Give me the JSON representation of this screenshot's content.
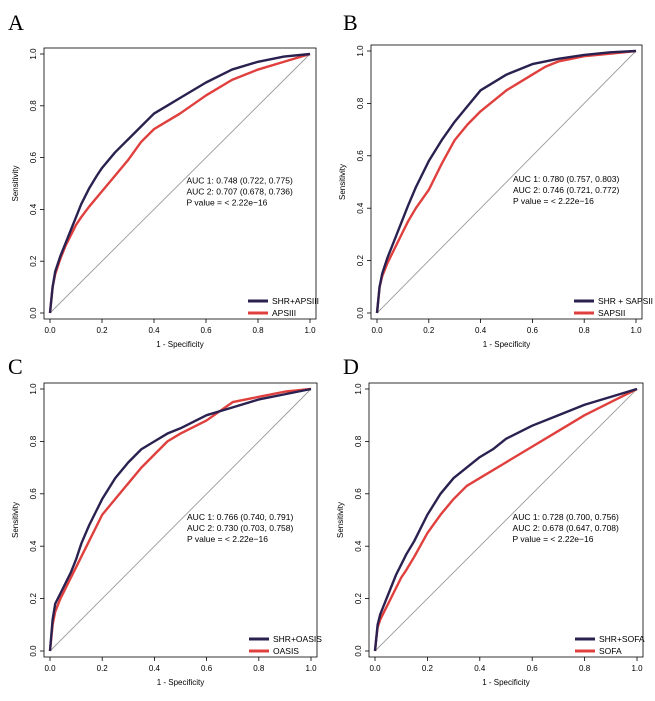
{
  "colors": {
    "series1": "#2b2150",
    "series2": "#e0403d",
    "diagonal": "#9a9a9a",
    "frame": "#000000"
  },
  "chart_data": [
    {
      "panel": "A",
      "type": "line",
      "xlabel": "1 - Specificity",
      "ylabel": "Sensitivity",
      "xlim": [
        0,
        1
      ],
      "ylim": [
        0,
        1
      ],
      "xticks": [
        "0.0",
        "0.2",
        "0.4",
        "0.6",
        "0.8",
        "1.0"
      ],
      "yticks": [
        "0.0",
        "0.2",
        "0.4",
        "0.6",
        "0.8",
        "1.0"
      ],
      "annotations": [
        "AUC 1: 0.748 (0.722, 0.775)",
        "AUC 2: 0.707 (0.678, 0.736)",
        "P value = < 2.22e−16"
      ],
      "legend_position": "bottom-right",
      "series": [
        {
          "name": "SHR+APSIII",
          "x": [
            0,
            0.005,
            0.01,
            0.02,
            0.04,
            0.06,
            0.08,
            0.1,
            0.12,
            0.15,
            0.18,
            0.2,
            0.25,
            0.3,
            0.35,
            0.4,
            0.45,
            0.5,
            0.6,
            0.7,
            0.8,
            0.9,
            1.0
          ],
          "y": [
            0,
            0.05,
            0.1,
            0.16,
            0.22,
            0.27,
            0.32,
            0.37,
            0.42,
            0.48,
            0.53,
            0.56,
            0.62,
            0.67,
            0.72,
            0.77,
            0.8,
            0.83,
            0.89,
            0.94,
            0.97,
            0.99,
            1.0
          ]
        },
        {
          "name": "APSIII",
          "x": [
            0,
            0.005,
            0.01,
            0.02,
            0.04,
            0.06,
            0.08,
            0.1,
            0.12,
            0.15,
            0.2,
            0.25,
            0.3,
            0.35,
            0.4,
            0.45,
            0.5,
            0.6,
            0.7,
            0.8,
            0.9,
            1.0
          ],
          "y": [
            0,
            0.05,
            0.1,
            0.15,
            0.21,
            0.26,
            0.3,
            0.34,
            0.37,
            0.41,
            0.47,
            0.53,
            0.59,
            0.66,
            0.71,
            0.74,
            0.77,
            0.84,
            0.9,
            0.94,
            0.97,
            1.0
          ]
        }
      ]
    },
    {
      "panel": "B",
      "type": "line",
      "xlabel": "1 - Specificity",
      "ylabel": "Sensitivity",
      "xlim": [
        0,
        1
      ],
      "ylim": [
        0,
        1
      ],
      "xticks": [
        "0.0",
        "0.2",
        "0.4",
        "0.6",
        "0.8",
        "1.0"
      ],
      "yticks": [
        "0.0",
        "0.2",
        "0.4",
        "0.6",
        "0.8",
        "1.0"
      ],
      "annotations": [
        "AUC 1: 0.780 (0.757, 0.803)",
        "AUC 2: 0.746 (0.721, 0.772)",
        "P value = < 2.22e−16"
      ],
      "legend_position": "bottom-right",
      "series": [
        {
          "name": "SHR + SAPSII",
          "x": [
            0,
            0.005,
            0.01,
            0.02,
            0.04,
            0.06,
            0.08,
            0.1,
            0.12,
            0.15,
            0.2,
            0.25,
            0.3,
            0.35,
            0.4,
            0.45,
            0.5,
            0.6,
            0.7,
            0.8,
            0.9,
            1.0
          ],
          "y": [
            0,
            0.05,
            0.1,
            0.15,
            0.21,
            0.26,
            0.31,
            0.36,
            0.41,
            0.48,
            0.58,
            0.66,
            0.73,
            0.79,
            0.85,
            0.88,
            0.91,
            0.95,
            0.97,
            0.985,
            0.995,
            1.0
          ]
        },
        {
          "name": "SAPSII",
          "x": [
            0,
            0.005,
            0.01,
            0.02,
            0.04,
            0.06,
            0.08,
            0.1,
            0.12,
            0.15,
            0.2,
            0.25,
            0.3,
            0.35,
            0.4,
            0.45,
            0.5,
            0.55,
            0.6,
            0.65,
            0.7,
            0.8,
            0.9,
            1.0
          ],
          "y": [
            0,
            0.05,
            0.1,
            0.14,
            0.19,
            0.23,
            0.27,
            0.31,
            0.35,
            0.4,
            0.47,
            0.57,
            0.66,
            0.72,
            0.77,
            0.81,
            0.85,
            0.88,
            0.91,
            0.94,
            0.96,
            0.98,
            0.99,
            1.0
          ]
        }
      ]
    },
    {
      "panel": "C",
      "type": "line",
      "xlabel": "1 - Specificity",
      "ylabel": "Sensitivity",
      "xlim": [
        0,
        1
      ],
      "ylim": [
        0,
        1
      ],
      "xticks": [
        "0.0",
        "0.2",
        "0.4",
        "0.6",
        "0.8",
        "1.0"
      ],
      "yticks": [
        "0.0",
        "0.2",
        "0.4",
        "0.6",
        "0.8",
        "1.0"
      ],
      "annotations": [
        "AUC 1: 0.766 (0.740, 0.791)",
        "AUC 2: 0.730 (0.703, 0.758)",
        "P value = < 2.22e−16"
      ],
      "legend_position": "bottom-right",
      "series": [
        {
          "name": "SHR+OASIS",
          "x": [
            0,
            0.005,
            0.01,
            0.02,
            0.04,
            0.06,
            0.08,
            0.1,
            0.12,
            0.15,
            0.18,
            0.2,
            0.25,
            0.3,
            0.35,
            0.4,
            0.45,
            0.5,
            0.6,
            0.7,
            0.8,
            0.9,
            1.0
          ],
          "y": [
            0,
            0.06,
            0.12,
            0.18,
            0.22,
            0.26,
            0.3,
            0.35,
            0.41,
            0.48,
            0.54,
            0.58,
            0.66,
            0.72,
            0.77,
            0.8,
            0.83,
            0.85,
            0.9,
            0.93,
            0.96,
            0.98,
            1.0
          ]
        },
        {
          "name": "OASIS",
          "x": [
            0,
            0.005,
            0.01,
            0.02,
            0.04,
            0.06,
            0.08,
            0.1,
            0.12,
            0.15,
            0.18,
            0.2,
            0.25,
            0.3,
            0.35,
            0.4,
            0.45,
            0.5,
            0.6,
            0.7,
            0.8,
            0.9,
            1.0
          ],
          "y": [
            0,
            0.05,
            0.1,
            0.15,
            0.2,
            0.24,
            0.28,
            0.32,
            0.36,
            0.42,
            0.48,
            0.52,
            0.58,
            0.64,
            0.7,
            0.75,
            0.8,
            0.83,
            0.88,
            0.95,
            0.97,
            0.99,
            1.0
          ]
        }
      ]
    },
    {
      "panel": "D",
      "type": "line",
      "xlabel": "1 - Specificity",
      "ylabel": "Sensitivity",
      "xlim": [
        0,
        1
      ],
      "ylim": [
        0,
        1
      ],
      "xticks": [
        "0.0",
        "0.2",
        "0.4",
        "0.6",
        "0.8",
        "1.0"
      ],
      "yticks": [
        "0.0",
        "0.2",
        "0.4",
        "0.6",
        "0.8",
        "1.0"
      ],
      "annotations": [
        "AUC 1: 0.728 (0.700, 0.756)",
        "AUC 2: 0.678 (0.647, 0.708)",
        "P value = < 2.22e−16"
      ],
      "legend_position": "bottom-right",
      "series": [
        {
          "name": "SHR+SOFA",
          "x": [
            0,
            0.005,
            0.01,
            0.02,
            0.04,
            0.06,
            0.08,
            0.1,
            0.12,
            0.15,
            0.2,
            0.25,
            0.3,
            0.35,
            0.4,
            0.45,
            0.5,
            0.6,
            0.7,
            0.8,
            0.9,
            1.0
          ],
          "y": [
            0,
            0.05,
            0.1,
            0.14,
            0.19,
            0.24,
            0.29,
            0.33,
            0.37,
            0.42,
            0.52,
            0.6,
            0.66,
            0.7,
            0.74,
            0.77,
            0.81,
            0.86,
            0.9,
            0.94,
            0.97,
            1.0
          ]
        },
        {
          "name": "SOFA",
          "x": [
            0,
            0.005,
            0.01,
            0.02,
            0.04,
            0.06,
            0.08,
            0.1,
            0.12,
            0.15,
            0.2,
            0.25,
            0.3,
            0.35,
            0.4,
            0.5,
            0.6,
            0.7,
            0.8,
            0.9,
            1.0
          ],
          "y": [
            0,
            0.05,
            0.09,
            0.12,
            0.16,
            0.2,
            0.24,
            0.28,
            0.31,
            0.36,
            0.45,
            0.52,
            0.58,
            0.63,
            0.66,
            0.72,
            0.78,
            0.84,
            0.9,
            0.95,
            1.0
          ]
        }
      ]
    }
  ]
}
